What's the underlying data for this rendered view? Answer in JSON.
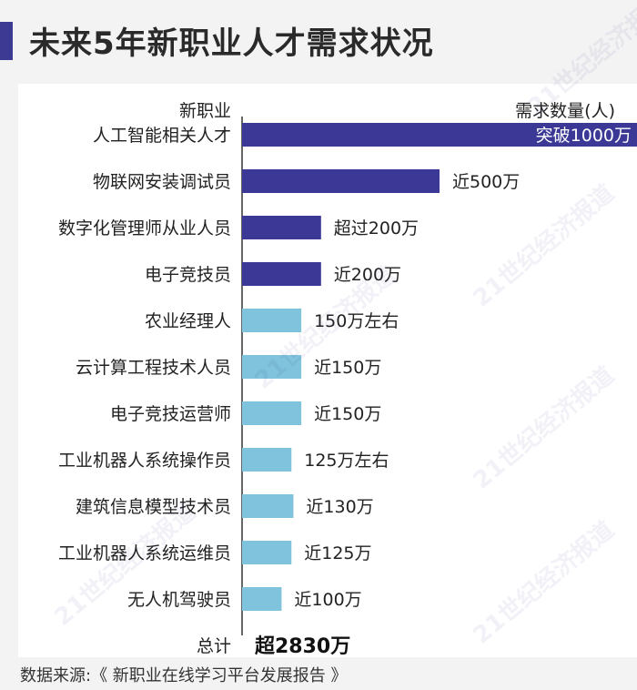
{
  "title": "未来5年新职业人才需求状况",
  "source": "数据来源:《 新职业在线学习平台发展报告 》",
  "watermark": "21世纪经济报道",
  "chart_data": {
    "type": "bar",
    "orientation": "horizontal",
    "xlabel_left": "新职业",
    "xlabel_right": "需求数量(人)",
    "unit": "万",
    "categories": [
      "人工智能相关人才",
      "物联网安装调试员",
      "数字化管理师从业人员",
      "电子竞技员",
      "农业经理人",
      "云计算工程技术人员",
      "电子竞技运营师",
      "工业机器人系统操作员",
      "建筑信息模型技术员",
      "工业机器人系统运维员",
      "无人机驾驶员"
    ],
    "values": [
      1000,
      500,
      200,
      200,
      150,
      150,
      150,
      125,
      130,
      125,
      100
    ],
    "value_labels": [
      "突破1000万",
      "近500万",
      "超过200万",
      "近200万",
      "150万左右",
      "近150万",
      "近150万",
      "125万左右",
      "近130万",
      "近125万",
      "近100万"
    ],
    "bar_colors": [
      "#3b3896",
      "#3b3896",
      "#3b3896",
      "#3b3896",
      "#7fc3dc",
      "#7fc3dc",
      "#7fc3dc",
      "#7fc3dc",
      "#7fc3dc",
      "#7fc3dc",
      "#7fc3dc"
    ],
    "total_label": "总计",
    "total_value": "超2830万"
  }
}
